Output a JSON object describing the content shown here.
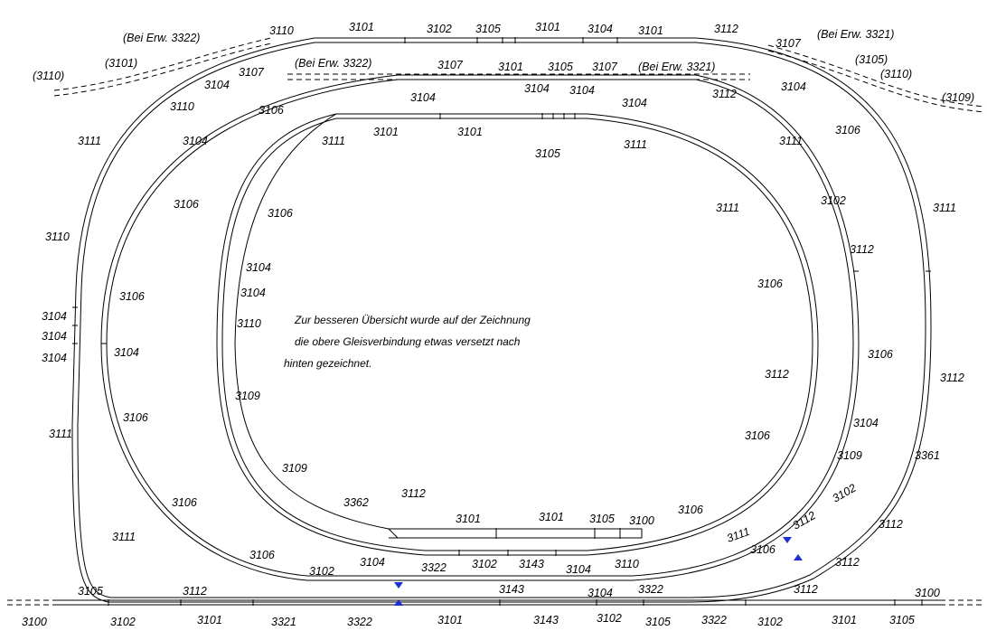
{
  "note": [
    "Zur besseren Übersicht wurde auf der Zeichnung",
    "die obere Gleisverbindung etwas versetzt nach",
    "hinten gezeichnet."
  ],
  "labels": {
    "bei_3322_a": "(Bei Erw. 3322)",
    "bei_3321_a": "(Bei Erw. 3321)",
    "bei_3322_b": "(Bei Erw. 3322)",
    "bei_3321_b": "(Bei Erw. 3321)",
    "p3110_l": "(3110)",
    "p3101_l": "(3101)",
    "p3105_r": "(3105)",
    "p3110_r": "(3110)",
    "p3109_r": "(3109)",
    "t3110_top": "3110",
    "t3101_top1": "3101",
    "t3102_top": "3102",
    "t3105_top": "3105",
    "t3101_top2": "3101",
    "t3104_top": "3104",
    "t3101_top3": "3101",
    "t3112_top": "3112",
    "t3107_tr": "3107",
    "t3107_tl": "3107",
    "t3104_tl": "3104",
    "t3107_m1": "3107",
    "t3101_m": "3101",
    "t3105_m": "3105",
    "t3107_m2": "3107",
    "t3104_m1": "3104",
    "t3104_m2": "3104",
    "t3104_m3": "3104",
    "t3112_m": "3112",
    "t3104_mr": "3104",
    "t3104_rt": "3104",
    "t3110_l1": "3110",
    "t3106_l1": "3106",
    "t3111_l1": "3111",
    "t3104_l1": "3104",
    "t3101_i1": "3101",
    "t3101_i2": "3101",
    "t3105_i": "3105",
    "t3111_i1": "3111",
    "t3111_r1": "3111",
    "t3106_r1": "3106",
    "t3111_l2": "3111",
    "t3106_l2": "3106",
    "t3106_i1": "3106",
    "t3111_i2": "3111",
    "t3102_r1": "3102",
    "t3111_r2": "3111",
    "t3110_l3": "3110",
    "t3112_r2": "3112",
    "t3104_i3": "3104",
    "t3104_i4": "3104",
    "t3106_l3": "3106",
    "t3106_i2": "3106",
    "t3104_s1": "3104",
    "t3104_s2": "3104",
    "t3104_s3": "3104",
    "t3110_i": "3110",
    "t3104_l4": "3104",
    "t3112_i": "3112",
    "t3106_r3": "3106",
    "t3112_r3": "3112",
    "t3109_i1": "3109",
    "t3106_l5": "3106",
    "t3111_l5": "3111",
    "t3106_i4": "3106",
    "t3104_r4": "3104",
    "t3109_r": "3109",
    "t3361": "3361",
    "t3109_i2": "3109",
    "t3362": "3362",
    "t3112_c": "3112",
    "t3106_l6": "3106",
    "t3106_r5": "3106",
    "t3102_r6": "3102",
    "t3111_l6": "3111",
    "t3101_c1": "3101",
    "t3101_c2": "3101",
    "t3105_c": "3105",
    "t3100_c": "3100",
    "t3112_r6": "3112",
    "t3111_c": "3111",
    "t3112_x": "3112",
    "t3106_x": "3106",
    "t3106_l7": "3106",
    "t3102_b1": "3102",
    "t3104_b1": "3104",
    "t3322_b1": "3322",
    "t3102_b2": "3102",
    "t3143_b1": "3143",
    "t3104_b2": "3104",
    "t3110_b": "3110",
    "t3112_r7": "3112",
    "t3105_bl": "3105",
    "t3112_bl": "3112",
    "t3143_b2": "3143",
    "t3104_b3": "3104",
    "t3322_b2": "3322",
    "t3112_br": "3112",
    "t3100_br": "3100",
    "t3100_bot": "3100",
    "t3102_bot1": "3102",
    "t3101_bot1": "3101",
    "t3321_bot": "3321",
    "t3322_bot1": "3322",
    "t3101_bot2": "3101",
    "t3143_bot": "3143",
    "t3102_bot2": "3102",
    "t3105_bot": "3105",
    "t3322_bot2": "3322",
    "t3102_bot3": "3102",
    "t3101_bot3": "3101",
    "t3105_bot2": "3105"
  },
  "colors": {
    "marker": "#1d2fd6"
  }
}
